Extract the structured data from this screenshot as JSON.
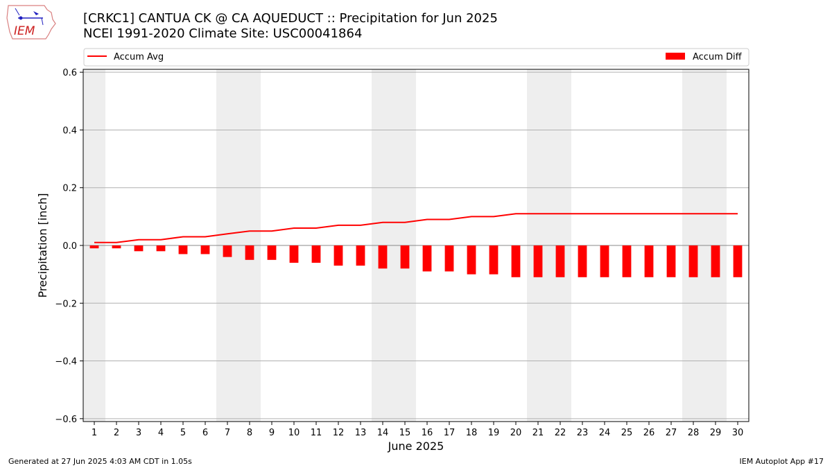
{
  "header": {
    "title_line1": "[CRKC1] CANTUA CK @ CA AQUEDUCT :: Precipitation for Jun 2025",
    "title_line2": "NCEI 1991-2020 Climate Site: USC00041864",
    "logo_text": "IEM"
  },
  "footer": {
    "generated": "Generated at 27 Jun 2025 4:03 AM CDT in 1.05s",
    "app": "IEM Autoplot App #17"
  },
  "colors": {
    "bar": "#ff0000",
    "line": "#ff0000",
    "weekend_band": "#eeeeee",
    "grid": "#b0b0b0"
  },
  "chart_data": {
    "type": "bar",
    "xlabel": "June 2025",
    "ylabel": "Precipitation [inch]",
    "ylim": [
      -0.61,
      0.61
    ],
    "yticks": [
      -0.6,
      -0.4,
      -0.2,
      0.0,
      0.2,
      0.4,
      0.6
    ],
    "ytick_labels": [
      "−0.6",
      "−0.4",
      "−0.2",
      "0.0",
      "0.2",
      "0.4",
      "0.6"
    ],
    "x": [
      1,
      2,
      3,
      4,
      5,
      6,
      7,
      8,
      9,
      10,
      11,
      12,
      13,
      14,
      15,
      16,
      17,
      18,
      19,
      20,
      21,
      22,
      23,
      24,
      25,
      26,
      27,
      28,
      29,
      30
    ],
    "weekend_days": [
      1,
      7,
      8,
      14,
      15,
      21,
      22,
      28,
      29
    ],
    "grid": "horizontal",
    "legend_placement": "top, above plot",
    "series": [
      {
        "name": "Accum Avg",
        "kind": "line",
        "values": [
          0.01,
          0.01,
          0.02,
          0.02,
          0.03,
          0.03,
          0.04,
          0.05,
          0.05,
          0.06,
          0.06,
          0.07,
          0.07,
          0.08,
          0.08,
          0.09,
          0.09,
          0.1,
          0.1,
          0.11,
          0.11,
          0.11,
          0.11,
          0.11,
          0.11,
          0.11,
          0.11,
          0.11,
          0.11,
          0.11
        ]
      },
      {
        "name": "Accum Diff",
        "kind": "bar",
        "values": [
          -0.01,
          -0.01,
          -0.02,
          -0.02,
          -0.03,
          -0.03,
          -0.04,
          -0.05,
          -0.05,
          -0.06,
          -0.06,
          -0.07,
          -0.07,
          -0.08,
          -0.08,
          -0.09,
          -0.09,
          -0.1,
          -0.1,
          -0.11,
          -0.11,
          -0.11,
          -0.11,
          -0.11,
          -0.11,
          -0.11,
          -0.11,
          -0.11,
          -0.11,
          -0.11
        ]
      }
    ]
  }
}
